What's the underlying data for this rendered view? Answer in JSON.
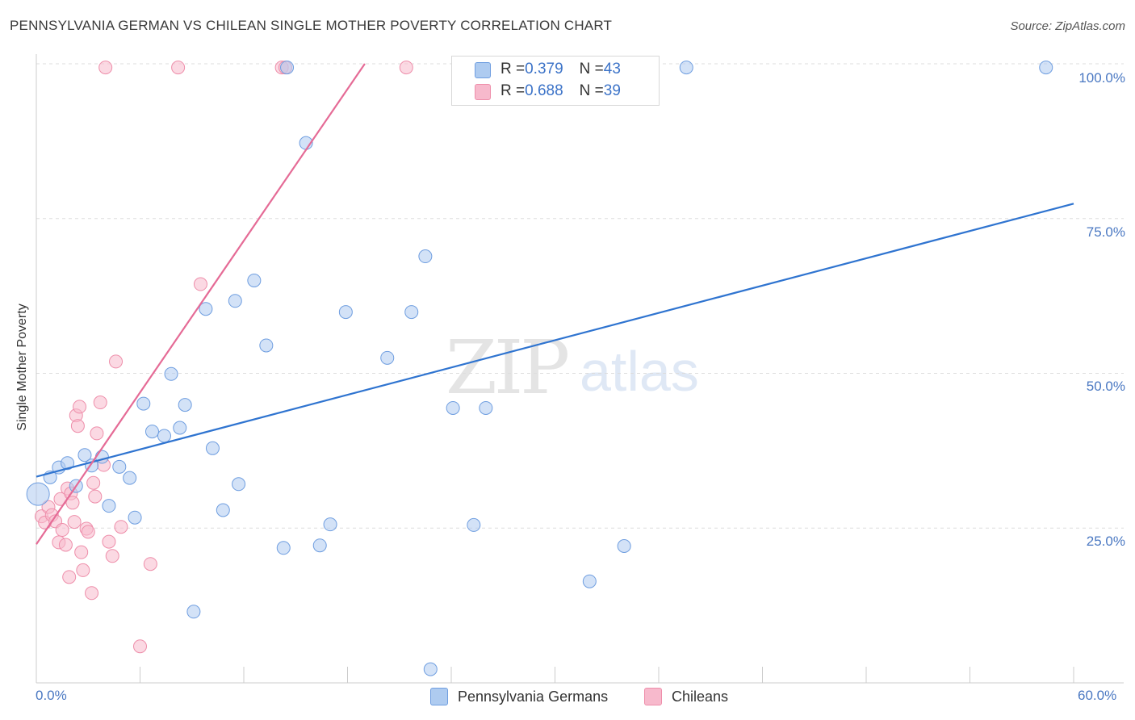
{
  "header": {
    "title": "PENNSYLVANIA GERMAN VS CHILEAN SINGLE MOTHER POVERTY CORRELATION CHART",
    "source": "Source: ZipAtlas.com"
  },
  "watermark": {
    "zip": "ZIP",
    "atlas": "atlas"
  },
  "legend": {
    "rows": [
      {
        "r_label": "R = ",
        "r_value": "0.379",
        "n_label": "N = ",
        "n_value": "43",
        "color": "#aecbf0"
      },
      {
        "r_label": "R = ",
        "r_value": "0.688",
        "n_label": "N = ",
        "n_value": "39",
        "color": "#f7b9cc"
      }
    ]
  },
  "bottom_legend": {
    "series1": "Pennsylvania Germans",
    "series2": "Chileans"
  },
  "colors": {
    "blue_fill": "#aecbf0",
    "blue_stroke": "#6f9ee0",
    "blue_line": "#2f74d0",
    "pink_fill": "#f7b9cc",
    "pink_stroke": "#ee8eaa",
    "pink_line": "#e56b96",
    "grid": "#dddddd",
    "tick_text": "#4a78c2"
  },
  "chart_data": {
    "type": "scatter",
    "title": "PENNSYLVANIA GERMAN VS CHILEAN SINGLE MOTHER POVERTY CORRELATION CHART",
    "xlabel": "",
    "ylabel": "Single Mother Poverty",
    "xlim": [
      0,
      60
    ],
    "ylim": [
      0,
      102
    ],
    "x_tick_labels": [
      "0.0%",
      "60.0%"
    ],
    "y_tick_labels": [
      "25.0%",
      "50.0%",
      "75.0%",
      "100.0%"
    ],
    "y_ticks": [
      25,
      50,
      75,
      100
    ],
    "grid": true,
    "legend_position": "top-center",
    "series": [
      {
        "name": "Pennsylvania Germans",
        "points": [
          [
            0.1,
            30.5
          ],
          [
            0.8,
            33.2
          ],
          [
            1.3,
            34.8
          ],
          [
            1.8,
            35.5
          ],
          [
            2.3,
            31.8
          ],
          [
            2.8,
            36.8
          ],
          [
            3.2,
            35.1
          ],
          [
            3.8,
            36.5
          ],
          [
            4.2,
            28.6
          ],
          [
            4.8,
            34.9
          ],
          [
            5.4,
            33.1
          ],
          [
            5.7,
            26.7
          ],
          [
            6.2,
            45.1
          ],
          [
            6.7,
            40.6
          ],
          [
            7.4,
            39.9
          ],
          [
            7.8,
            49.9
          ],
          [
            8.3,
            41.2
          ],
          [
            8.6,
            44.9
          ],
          [
            9.8,
            60.4
          ],
          [
            10.2,
            37.9
          ],
          [
            10.8,
            27.9
          ],
          [
            11.5,
            61.7
          ],
          [
            11.7,
            32.1
          ],
          [
            12.6,
            65.0
          ],
          [
            13.3,
            54.5
          ],
          [
            14.3,
            21.8
          ],
          [
            14.5,
            99.4
          ],
          [
            15.6,
            87.2
          ],
          [
            16.4,
            22.2
          ],
          [
            17.0,
            25.6
          ],
          [
            17.9,
            59.9
          ],
          [
            20.3,
            52.5
          ],
          [
            21.7,
            59.9
          ],
          [
            22.5,
            68.9
          ],
          [
            22.8,
            2.2
          ],
          [
            24.1,
            44.4
          ],
          [
            25.3,
            25.5
          ],
          [
            26.0,
            44.4
          ],
          [
            32.0,
            16.4
          ],
          [
            34.0,
            22.1
          ],
          [
            37.6,
            99.4
          ],
          [
            58.4,
            99.4
          ],
          [
            9.1,
            11.5
          ]
        ]
      },
      {
        "name": "Chileans",
        "points": [
          [
            0.3,
            26.9
          ],
          [
            0.5,
            25.9
          ],
          [
            0.7,
            28.4
          ],
          [
            0.9,
            27.1
          ],
          [
            1.1,
            26.1
          ],
          [
            1.3,
            22.7
          ],
          [
            1.4,
            29.7
          ],
          [
            1.5,
            24.7
          ],
          [
            1.7,
            22.3
          ],
          [
            1.8,
            31.4
          ],
          [
            1.9,
            17.1
          ],
          [
            2.0,
            30.6
          ],
          [
            2.1,
            29.1
          ],
          [
            2.3,
            43.2
          ],
          [
            2.4,
            41.5
          ],
          [
            2.5,
            44.6
          ],
          [
            2.6,
            21.1
          ],
          [
            2.7,
            18.2
          ],
          [
            2.9,
            24.9
          ],
          [
            3.0,
            24.4
          ],
          [
            3.2,
            14.5
          ],
          [
            3.3,
            32.3
          ],
          [
            3.4,
            30.1
          ],
          [
            3.5,
            40.3
          ],
          [
            3.7,
            45.3
          ],
          [
            3.9,
            35.2
          ],
          [
            4.0,
            99.4
          ],
          [
            4.2,
            22.8
          ],
          [
            4.4,
            20.5
          ],
          [
            4.6,
            51.9
          ],
          [
            4.9,
            25.2
          ],
          [
            6.0,
            5.9
          ],
          [
            6.6,
            19.2
          ],
          [
            8.2,
            99.4
          ],
          [
            9.5,
            64.4
          ],
          [
            14.2,
            99.4
          ],
          [
            14.4,
            99.4
          ],
          [
            21.4,
            99.4
          ],
          [
            2.2,
            26.0
          ]
        ]
      }
    ],
    "trend_lines": [
      {
        "series": "Pennsylvania Germans",
        "x": [
          0,
          60
        ],
        "y": [
          33.3,
          77.4
        ]
      },
      {
        "series": "Chileans",
        "x": [
          0,
          19
        ],
        "y": [
          22.4,
          100
        ]
      }
    ]
  }
}
